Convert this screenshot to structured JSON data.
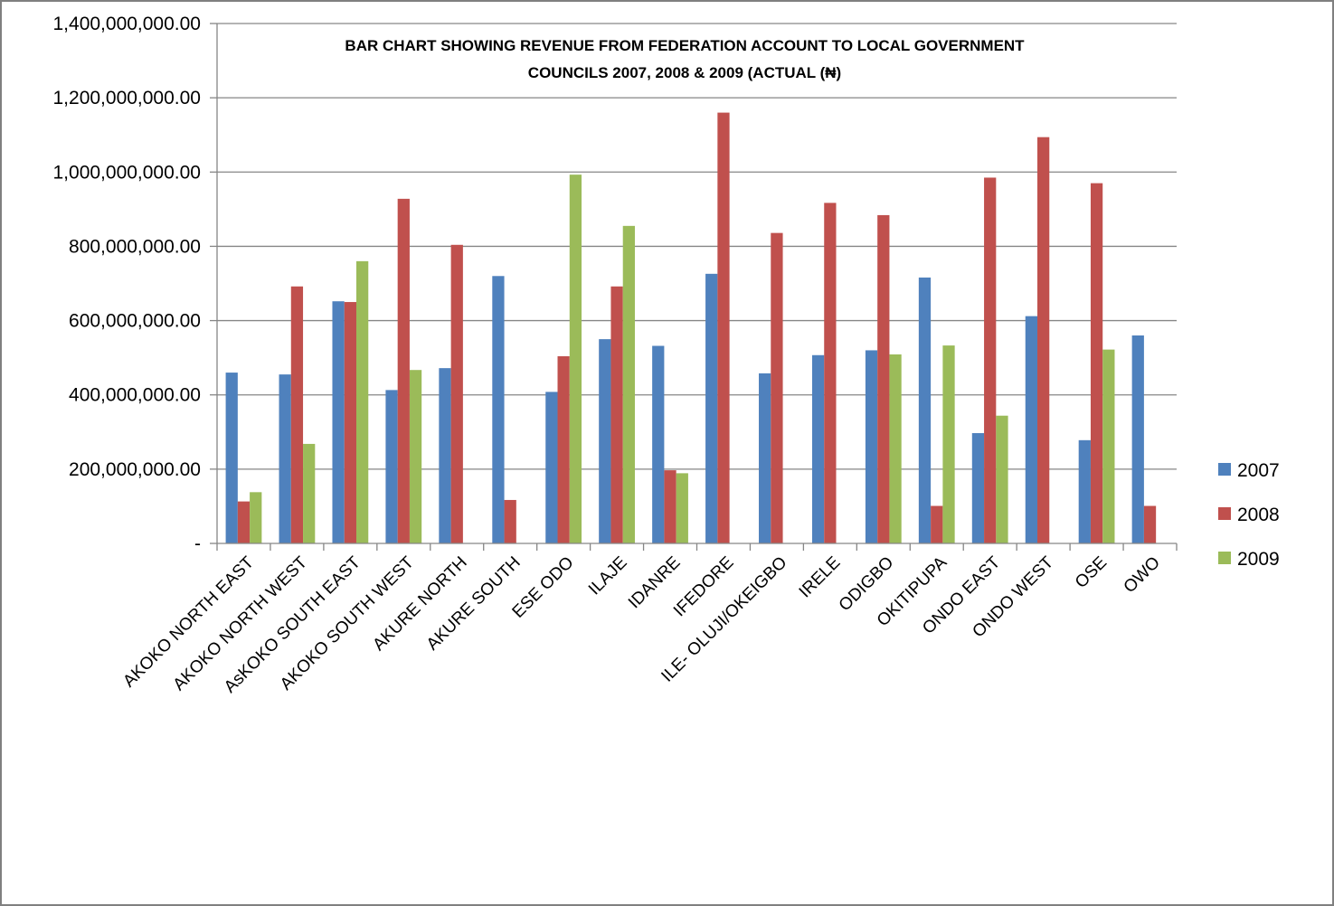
{
  "chart_data": {
    "type": "bar",
    "title_lines": [
      "BAR CHART SHOWING REVENUE FROM FEDERATION ACCOUNT TO LOCAL GOVERNMENT",
      "COUNCILS 2007, 2008 & 2009 (ACTUAL (₦)"
    ],
    "categories": [
      "AKOKO NORTH EAST",
      "AKOKO NORTH WEST",
      "AsKOKO SOUTH EAST",
      "AKOKO SOUTH WEST",
      "AKURE NORTH",
      "AKURE SOUTH",
      "ESE ODO",
      "ILAJE",
      "IDANRE",
      "IFEDORE",
      "ILE- OLUJI/OKEIGBO",
      "IRELE",
      "ODIGBO",
      "OKITIPUPA",
      "ONDO EAST",
      "ONDO WEST",
      "OSE",
      "OWO"
    ],
    "series": [
      {
        "name": "2007",
        "color": "#4f81bd",
        "values": [
          460000000,
          455000000,
          652000000,
          413000000,
          472000000,
          720000000,
          408000000,
          550000000,
          532000000,
          726000000,
          458000000,
          507000000,
          520000000,
          716000000,
          297000000,
          612000000,
          278000000,
          560000000
        ]
      },
      {
        "name": "2008",
        "color": "#c0504d",
        "values": [
          113000000,
          692000000,
          650000000,
          928000000,
          804000000,
          117000000,
          504000000,
          692000000,
          197000000,
          1160000000,
          836000000,
          917000000,
          884000000,
          101000000,
          985000000,
          1094000000,
          970000000,
          101000000
        ]
      },
      {
        "name": "2009",
        "color": "#9bbb59",
        "values": [
          138000000,
          268000000,
          760000000,
          467000000,
          0,
          0,
          993000000,
          855000000,
          189000000,
          0,
          0,
          0,
          509000000,
          533000000,
          344000000,
          0,
          522000000,
          0
        ]
      }
    ],
    "ylim": [
      0,
      1400000000
    ],
    "yticks": [
      {
        "value": 0,
        "label": "-"
      },
      {
        "value": 200000000,
        "label": "200,000,000.00"
      },
      {
        "value": 400000000,
        "label": "400,000,000.00"
      },
      {
        "value": 600000000,
        "label": "600,000,000.00"
      },
      {
        "value": 800000000,
        "label": "800,000,000.00"
      },
      {
        "value": 1000000000,
        "label": "1,000,000,000.00"
      },
      {
        "value": 1200000000,
        "label": "1,200,000,000.00"
      },
      {
        "value": 1400000000,
        "label": "1,400,000,000.00"
      }
    ],
    "grid": true,
    "gridline_color": "#868686",
    "legend_position": "right"
  }
}
